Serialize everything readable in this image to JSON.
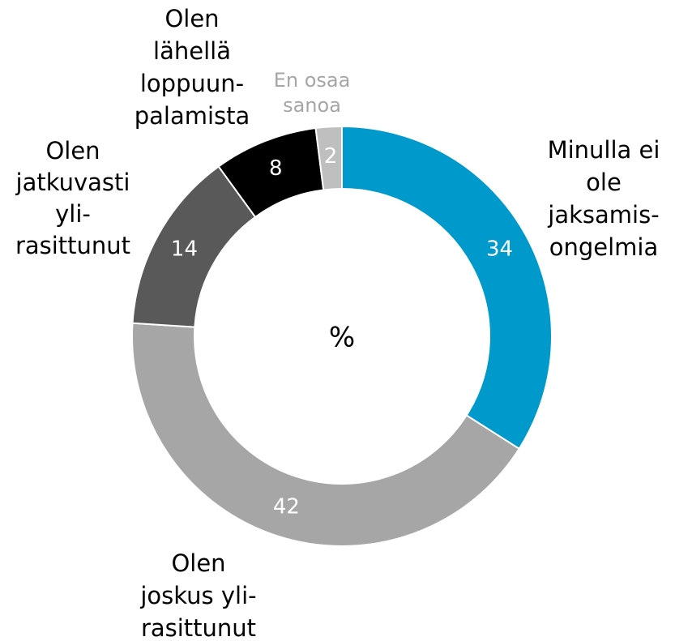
{
  "chart_data": {
    "type": "pie",
    "center_label": "%",
    "categories": [
      [
        "Minulla ei",
        "ole",
        "jaksamis-",
        "ongelmia"
      ],
      [
        "Olen",
        "joskus yli-",
        "rasittunut"
      ],
      [
        "Olen",
        "jatkuvasti",
        "yli-",
        "rasittunut"
      ],
      [
        "Olen",
        "lähellä",
        "loppuun-",
        "palamista"
      ],
      [
        "En osaa",
        "sanoa"
      ]
    ],
    "values": [
      34,
      42,
      14,
      8,
      2
    ],
    "colors": [
      "#0099cc",
      "#a6a6a6",
      "#595959",
      "#000000",
      "#bfbfbf"
    ]
  }
}
